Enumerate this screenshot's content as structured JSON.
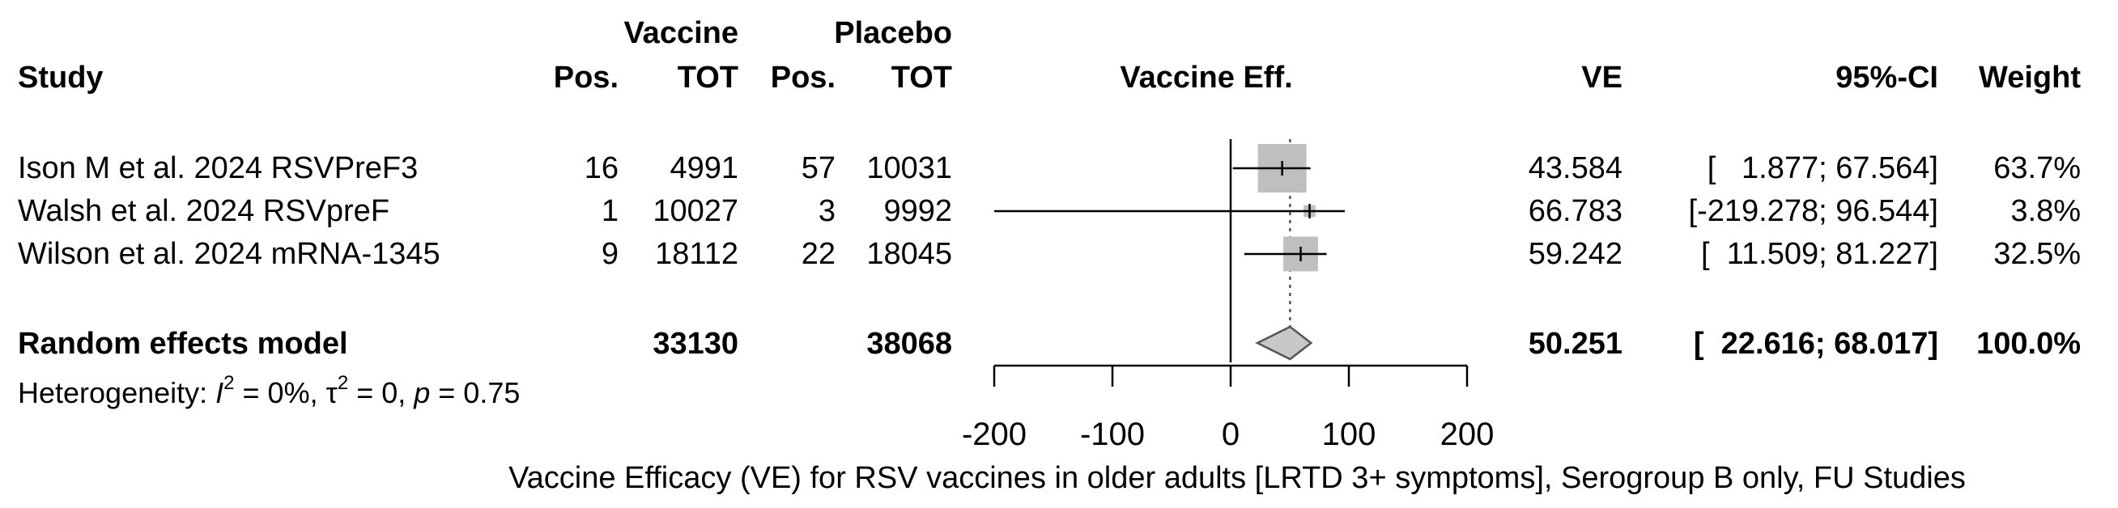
{
  "headers": {
    "vaccine_group": "Vaccine",
    "placebo_group": "Placebo",
    "study": "Study",
    "vac_pos": "Pos.",
    "vac_tot": "TOT",
    "pla_pos": "Pos.",
    "pla_tot": "TOT",
    "effect": "Vaccine Eff.",
    "ve": "VE",
    "ci": "95%-CI",
    "weight": "Weight"
  },
  "studies": [
    {
      "name": "Ison M et al. 2024 RSVPreF3",
      "vac_pos": "16",
      "vac_tot": "4991",
      "pla_pos": "57",
      "pla_tot": "10031",
      "ve_text": "43.584",
      "ci_text": "[   1.877; 67.564]",
      "weight_text": "63.7%"
    },
    {
      "name": "Walsh et al. 2024 RSVpreF",
      "vac_pos": "1",
      "vac_tot": "10027",
      "pla_pos": "3",
      "pla_tot": "9992",
      "ve_text": "66.783",
      "ci_text": "[-219.278; 96.544]",
      "weight_text": "3.8%"
    },
    {
      "name": "Wilson et al. 2024 mRNA-1345",
      "vac_pos": "9",
      "vac_tot": "18112",
      "pla_pos": "22",
      "pla_tot": "18045",
      "ve_text": "59.242",
      "ci_text": "[  11.509; 81.227]",
      "weight_text": "32.5%"
    }
  ],
  "pooled": {
    "name": "Random effects model",
    "vac_tot": "33130",
    "pla_tot": "38068",
    "ve_text": "50.251",
    "ci_text": "[  22.616; 68.017]",
    "weight_text": "100.0%"
  },
  "heterogeneity": {
    "prefix": "Heterogeneity: ",
    "i_symbol": "I",
    "sup": "2",
    "rest": " = 0%, τ",
    "tau_sup": "2",
    "rest2": " = 0, ",
    "p_symbol": "p",
    "rest3": " = 0.75"
  },
  "chart_data": {
    "type": "forest",
    "xlabel": "Vaccine Efficacy (VE) for RSV vaccines in older adults [LRTD 3+ symptoms], Serogroup B only, FU Studies",
    "xlim": [
      -200,
      200
    ],
    "ticks": [
      -200,
      -100,
      0,
      100,
      200
    ],
    "reference_line": 0,
    "pooled_estimate_line": 50.251,
    "studies": [
      {
        "name": "Ison M et al. 2024 RSVPreF3",
        "ve": 43.584,
        "ci": [
          1.877,
          67.564
        ],
        "weight": 63.7
      },
      {
        "name": "Walsh et al. 2024 RSVpreF",
        "ve": 66.783,
        "ci": [
          -219.278,
          96.544
        ],
        "weight": 3.8
      },
      {
        "name": "Wilson et al. 2024 mRNA-1345",
        "ve": 59.242,
        "ci": [
          11.509,
          81.227
        ],
        "weight": 32.5
      }
    ],
    "pooled": {
      "name": "Random effects model",
      "ve": 50.251,
      "ci": [
        22.616,
        68.017
      ]
    },
    "colors": {
      "box": "#bfbfbf",
      "diamond": "#c8c8c8",
      "line": "#000000"
    }
  }
}
